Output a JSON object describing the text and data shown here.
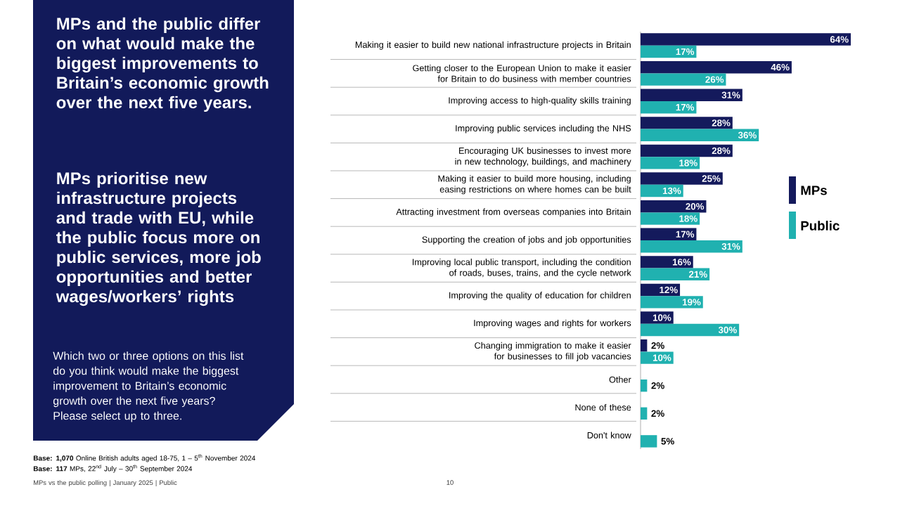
{
  "chart_data": {
    "type": "bar",
    "orientation": "horizontal",
    "title": "MPs and the public differ on what would make the biggest improvements to Britain’s economic growth over the next five years.",
    "subtitle": "MPs prioritise new infrastructure projects and trade with EU, while the public focus more on public services, more job opportunities and better wages/workers’ rights",
    "categories": [
      "Making it easier to build new national infrastructure projects in Britain",
      "Getting closer to the European Union to make it easier for Britain to do business with member countries",
      "Improving access to high-quality skills training",
      "Improving public services including the NHS",
      "Encouraging UK businesses to invest more in new technology, buildings, and machinery",
      "Making it easier to build more housing, including easing restrictions on where homes can be built",
      "Attracting investment from overseas companies into Britain",
      "Supporting the creation of jobs and job opportunities",
      "Improving local public transport, including the condition of roads, buses, trains, and the cycle network",
      "Improving the quality of education for children",
      "Improving wages and rights for workers",
      "Changing immigration to make it easier for businesses to fill job vacancies",
      "Other",
      "None of these",
      "Don't know"
    ],
    "series": [
      {
        "name": "MPs",
        "color": "#141a5c",
        "values": [
          64,
          46,
          31,
          28,
          28,
          25,
          20,
          17,
          16,
          12,
          10,
          2,
          null,
          null,
          null
        ],
        "value_labels": [
          "64%",
          "46%",
          "31%",
          "28%",
          "28%",
          "25%",
          "20%",
          "17%",
          "16%",
          "12%",
          "10%",
          "2%",
          null,
          null,
          null
        ]
      },
      {
        "name": "Public",
        "color": "#20b1b0",
        "values": [
          17,
          26,
          17,
          36,
          18,
          13,
          18,
          31,
          21,
          19,
          30,
          10,
          2,
          2,
          5
        ],
        "value_labels": [
          "17%",
          "26%",
          "17%",
          "36%",
          "18%",
          "13%",
          "18%",
          "31%",
          "21%",
          "19%",
          "30%",
          "10%",
          "2%",
          "2%",
          "5%"
        ]
      }
    ],
    "legend": "right",
    "annotations": [
      "Which two or three options on this list do you think would make the biggest improvement to Britain’s economic growth over the next five years?  Please select up to three.",
      "**Base: 1,070** Online British adults aged 18-75, 1 – 5$^{th}$ November 2024",
      "**Base: 117** MPs, 22$^{nd}$ July – 30$^{th}$ September 2024",
      "MPs vs the public polling | January 2025 | Public",
      "10"
    ]
  }
}
